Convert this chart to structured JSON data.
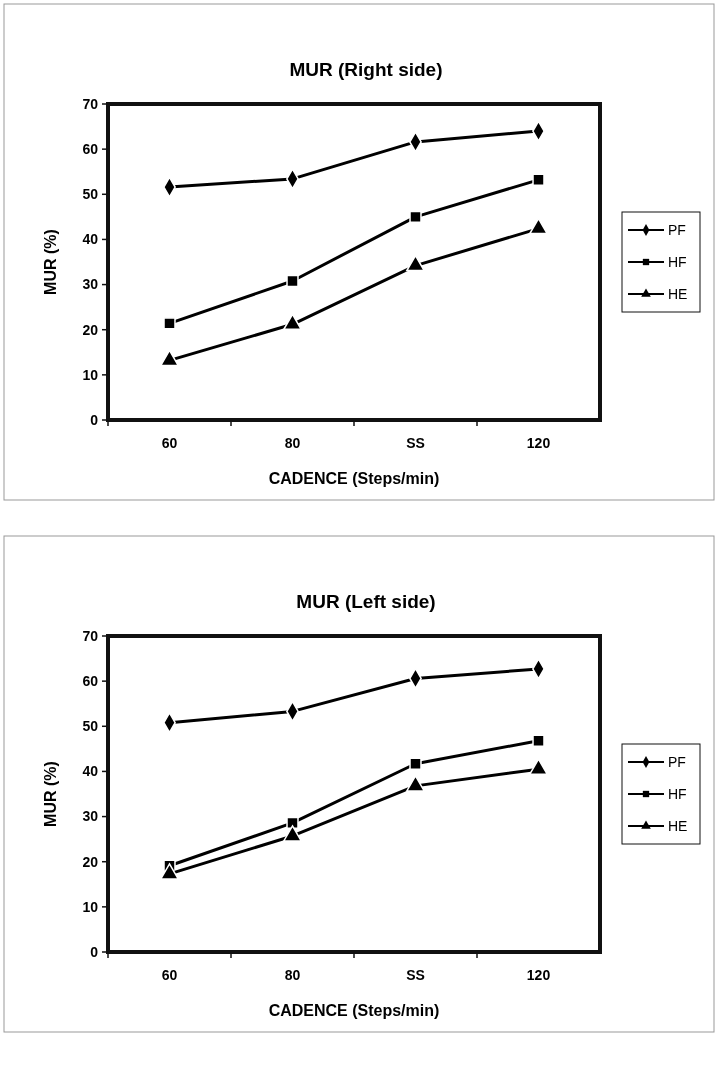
{
  "chart_data": [
    {
      "type": "line",
      "title": "MUR (Right side)",
      "xlabel": "CADENCE (Steps/min)",
      "ylabel": "MUR (%)",
      "categories": [
        "60",
        "80",
        "SS",
        "120"
      ],
      "ylim": [
        0,
        70
      ],
      "yticks": [
        0,
        10,
        20,
        30,
        40,
        50,
        60,
        70
      ],
      "grid": false,
      "legend": "right",
      "series": [
        {
          "name": "PF",
          "color": "#000000",
          "marker": "diamond",
          "values": [
            51.6,
            53.4,
            61.6,
            64
          ]
        },
        {
          "name": "HF",
          "color": "#000000",
          "marker": "square",
          "values": [
            21.4,
            30.8,
            45,
            53.2
          ]
        },
        {
          "name": "HE",
          "color": "#000000",
          "marker": "triangle",
          "values": [
            13.2,
            21.2,
            34.2,
            42.4
          ]
        }
      ]
    },
    {
      "type": "line",
      "title": "MUR (Left side)",
      "xlabel": "CADENCE (Steps/min)",
      "ylabel": "MUR (%)",
      "categories": [
        "60",
        "80",
        "SS",
        "120"
      ],
      "ylim": [
        0,
        70
      ],
      "yticks": [
        0,
        10,
        20,
        30,
        40,
        50,
        60,
        70
      ],
      "grid": false,
      "legend": "right",
      "series": [
        {
          "name": "PF",
          "color": "#000000",
          "marker": "diamond",
          "values": [
            50.8,
            53.3,
            60.6,
            62.7
          ]
        },
        {
          "name": "HF",
          "color": "#000000",
          "marker": "square",
          "values": [
            19.1,
            28.6,
            41.7,
            46.8
          ]
        },
        {
          "name": "HE",
          "color": "#000000",
          "marker": "triangle",
          "values": [
            17.3,
            25.7,
            36.8,
            40.5
          ]
        }
      ]
    }
  ]
}
